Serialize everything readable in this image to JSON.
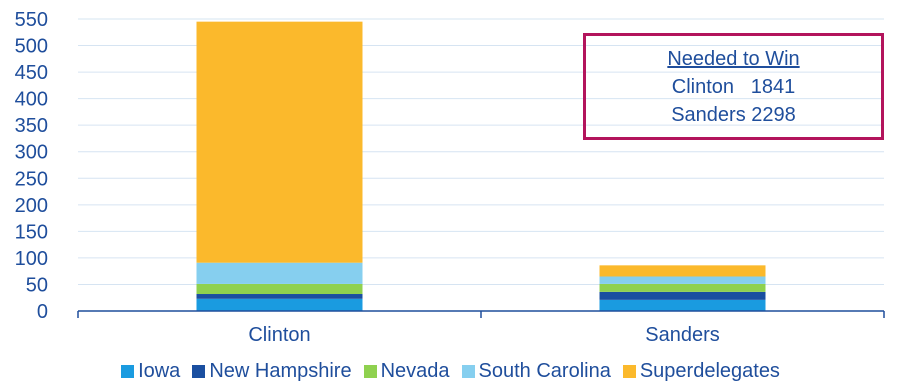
{
  "chart_data": {
    "type": "bar",
    "stacked": true,
    "categories": [
      "Clinton",
      "Sanders"
    ],
    "series": [
      {
        "name": "Iowa",
        "color": "#1a9be0",
        "values": [
          23,
          21
        ]
      },
      {
        "name": "New Hampshire",
        "color": "#1a4fa0",
        "values": [
          9,
          15
        ]
      },
      {
        "name": "Nevada",
        "color": "#8fd14f",
        "values": [
          19,
          15
        ]
      },
      {
        "name": "South Carolina",
        "color": "#86cfef",
        "values": [
          40,
          14
        ]
      },
      {
        "name": "Superdelegates",
        "color": "#fbb92c",
        "values": [
          454,
          21
        ]
      }
    ],
    "yticks": [
      0,
      50,
      100,
      150,
      200,
      250,
      300,
      350,
      400,
      450,
      500,
      550
    ],
    "ylim": [
      0,
      550
    ],
    "grid": true,
    "legend_position": "bottom",
    "annotation": {
      "title": "Needed to Win",
      "lines": [
        "Clinton   1841",
        "Sanders 2298"
      ]
    }
  }
}
